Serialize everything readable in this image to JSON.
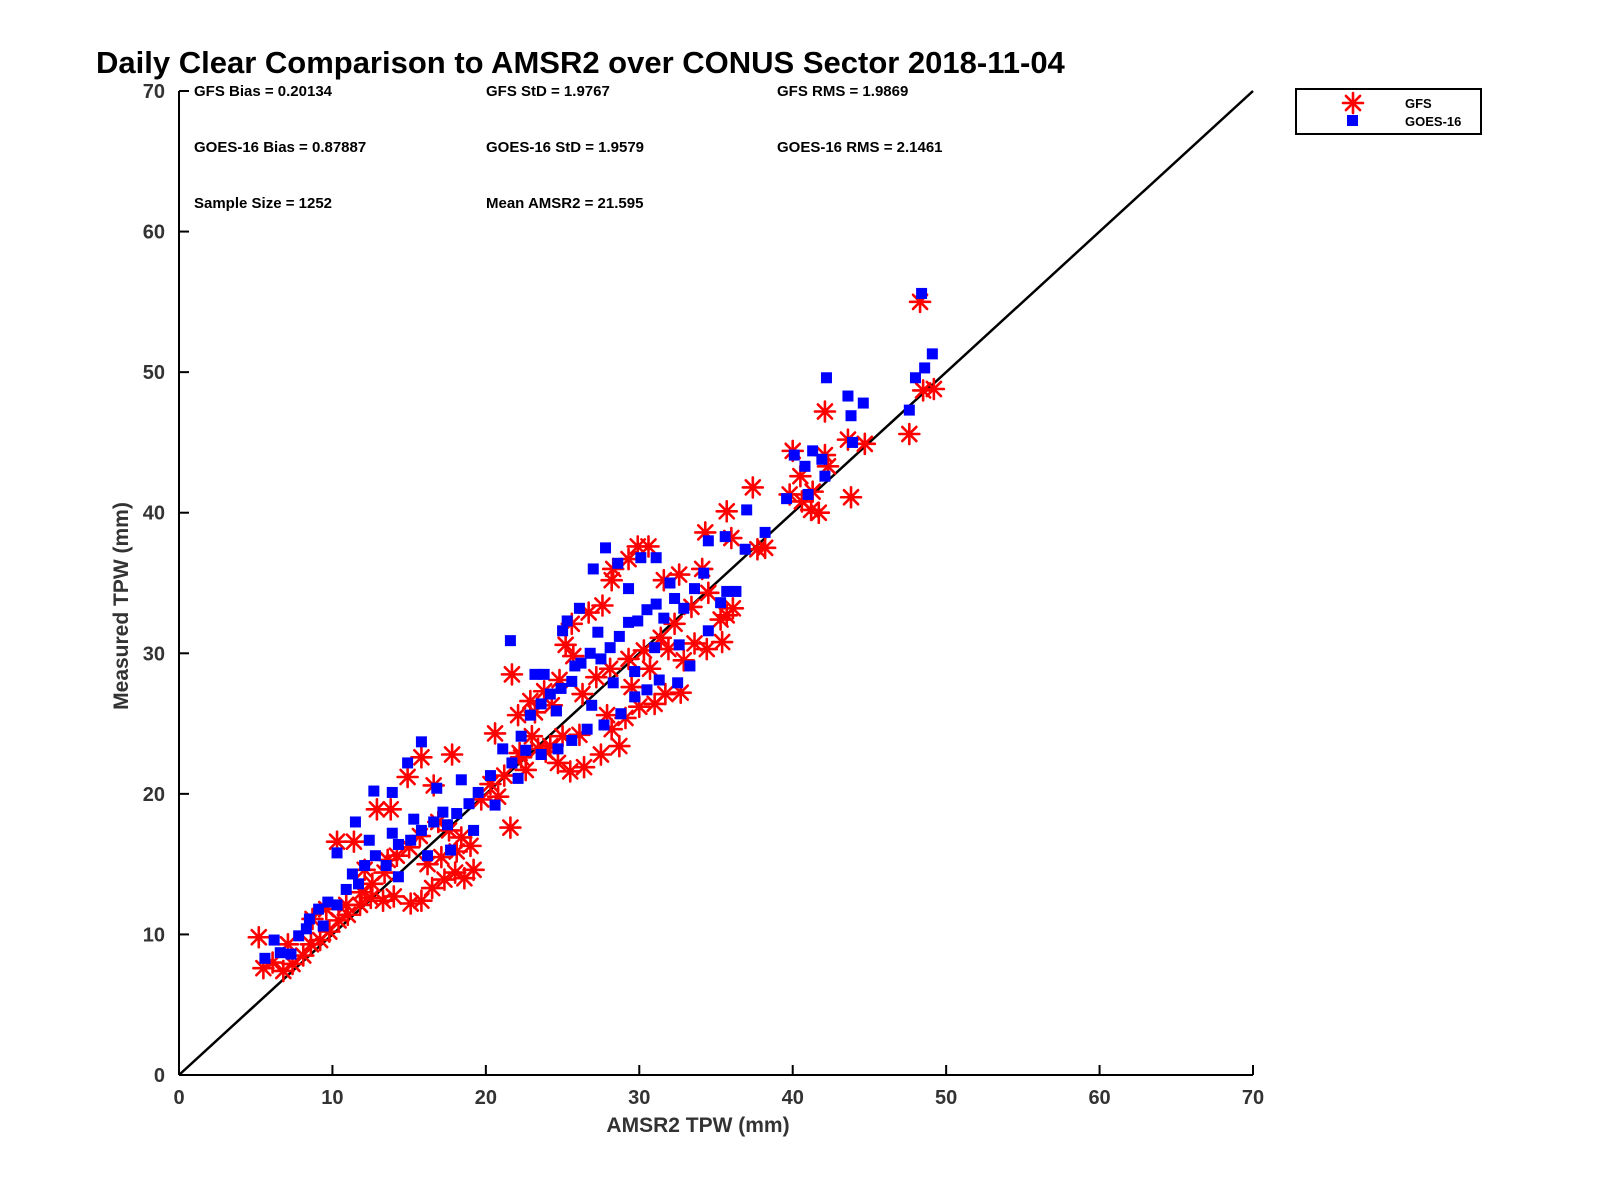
{
  "chart_data": {
    "type": "scatter",
    "title": "Daily Clear Comparison to AMSR2 over CONUS Sector 2018-11-04",
    "xlabel": "AMSR2 TPW (mm)",
    "ylabel": "Measured TPW (mm)",
    "xlim": [
      0,
      70
    ],
    "ylim": [
      0,
      70
    ],
    "xticks": [
      0,
      10,
      20,
      30,
      40,
      50,
      60,
      70
    ],
    "yticks": [
      0,
      10,
      20,
      30,
      40,
      50,
      60,
      70
    ],
    "grid": false,
    "legend_position": "outside-top-right",
    "reference_line": {
      "from": [
        0,
        0
      ],
      "to": [
        70,
        70
      ],
      "color": "#000000"
    },
    "stats": [
      {
        "text": "GFS Bias = 0.20134"
      },
      {
        "text": "GFS StD = 1.9767"
      },
      {
        "text": "GFS RMS = 1.9869"
      },
      {
        "text": "GOES-16 Bias = 0.87887"
      },
      {
        "text": "GOES-16 StD = 1.9579"
      },
      {
        "text": "GOES-16 RMS = 2.1461"
      },
      {
        "text": "Sample Size = 1252"
      },
      {
        "text": "Mean AMSR2 = 21.595"
      }
    ],
    "series": [
      {
        "name": "GFS",
        "marker": "asterisk",
        "color": "#ff0000",
        "points": [
          [
            5.2,
            9.8
          ],
          [
            5.5,
            7.6
          ],
          [
            6.1,
            8.0
          ],
          [
            6.8,
            7.4
          ],
          [
            7.4,
            7.9
          ],
          [
            8.1,
            8.5
          ],
          [
            8.6,
            9.3
          ],
          [
            9.2,
            9.6
          ],
          [
            9.8,
            10.2
          ],
          [
            10.4,
            11.0
          ],
          [
            11.0,
            11.4
          ],
          [
            11.8,
            12.1
          ],
          [
            12.5,
            12.6
          ],
          [
            13.3,
            12.4
          ],
          [
            14.0,
            12.7
          ],
          [
            15.1,
            12.2
          ],
          [
            15.8,
            12.4
          ],
          [
            16.5,
            13.3
          ],
          [
            17.3,
            13.9
          ],
          [
            18.0,
            14.4
          ],
          [
            18.6,
            14.0
          ],
          [
            19.2,
            14.6
          ],
          [
            19.0,
            16.3
          ],
          [
            18.4,
            16.9
          ],
          [
            17.6,
            17.4
          ],
          [
            16.9,
            18.0
          ],
          [
            15.7,
            17.0
          ],
          [
            15.0,
            16.2
          ],
          [
            14.2,
            15.6
          ],
          [
            13.4,
            14.4
          ],
          [
            12.6,
            13.6
          ],
          [
            11.9,
            13.0
          ],
          [
            10.9,
            12.1
          ],
          [
            10.3,
            16.6
          ],
          [
            11.4,
            16.6
          ],
          [
            12.9,
            18.9
          ],
          [
            13.8,
            18.9
          ],
          [
            14.9,
            21.2
          ],
          [
            15.8,
            22.6
          ],
          [
            17.8,
            22.8
          ],
          [
            16.6,
            20.6
          ],
          [
            20.6,
            24.3
          ],
          [
            21.7,
            28.5
          ],
          [
            20.3,
            20.7
          ],
          [
            21.6,
            17.6
          ],
          [
            21.2,
            21.3
          ],
          [
            22.3,
            22.6
          ],
          [
            23.4,
            23.2
          ],
          [
            24.2,
            23.4
          ],
          [
            25.0,
            24.1
          ],
          [
            25.5,
            21.6
          ],
          [
            26.4,
            21.9
          ],
          [
            27.5,
            22.8
          ],
          [
            28.7,
            23.4
          ],
          [
            28.2,
            24.6
          ],
          [
            29.1,
            25.4
          ],
          [
            30.0,
            26.2
          ],
          [
            31.0,
            26.4
          ],
          [
            31.7,
            27.1
          ],
          [
            32.7,
            27.2
          ],
          [
            32.9,
            29.5
          ],
          [
            33.6,
            30.7
          ],
          [
            34.4,
            30.3
          ],
          [
            35.4,
            30.8
          ],
          [
            35.7,
            32.7
          ],
          [
            36.1,
            33.2
          ],
          [
            35.3,
            32.4
          ],
          [
            34.5,
            34.3
          ],
          [
            34.1,
            36.0
          ],
          [
            34.3,
            38.6
          ],
          [
            35.7,
            40.1
          ],
          [
            36.0,
            38.2
          ],
          [
            37.4,
            41.8
          ],
          [
            38.2,
            37.5
          ],
          [
            37.7,
            37.4
          ],
          [
            32.6,
            35.6
          ],
          [
            31.6,
            35.2
          ],
          [
            30.6,
            37.6
          ],
          [
            29.9,
            37.6
          ],
          [
            29.3,
            36.7
          ],
          [
            28.3,
            36.0
          ],
          [
            28.2,
            35.2
          ],
          [
            27.6,
            33.4
          ],
          [
            26.7,
            32.9
          ],
          [
            25.6,
            32.1
          ],
          [
            25.2,
            30.6
          ],
          [
            25.7,
            29.8
          ],
          [
            24.8,
            28.1
          ],
          [
            23.8,
            27.3
          ],
          [
            22.9,
            26.6
          ],
          [
            22.1,
            25.6
          ],
          [
            23.2,
            25.8
          ],
          [
            24.3,
            26.3
          ],
          [
            26.3,
            27.1
          ],
          [
            27.2,
            28.3
          ],
          [
            28.1,
            28.9
          ],
          [
            29.3,
            29.6
          ],
          [
            30.3,
            30.2
          ],
          [
            31.4,
            31.1
          ],
          [
            32.3,
            32.1
          ],
          [
            33.4,
            33.3
          ],
          [
            26.1,
            24.2
          ],
          [
            27.9,
            25.6
          ],
          [
            29.5,
            27.6
          ],
          [
            30.7,
            28.9
          ],
          [
            31.9,
            30.3
          ],
          [
            24.7,
            22.2
          ],
          [
            23.9,
            23.0
          ],
          [
            23.0,
            24.1
          ],
          [
            22.2,
            22.9
          ],
          [
            39.8,
            41.3
          ],
          [
            40.6,
            40.8
          ],
          [
            41.2,
            40.2
          ],
          [
            41.7,
            40.0
          ],
          [
            41.3,
            41.5
          ],
          [
            40.5,
            42.6
          ],
          [
            40.0,
            44.4
          ],
          [
            42.1,
            44.1
          ],
          [
            42.1,
            47.2
          ],
          [
            42.3,
            43.3
          ],
          [
            43.6,
            45.2
          ],
          [
            44.7,
            44.9
          ],
          [
            43.8,
            41.1
          ],
          [
            47.6,
            45.6
          ],
          [
            48.5,
            48.7
          ],
          [
            49.2,
            48.8
          ],
          [
            48.3,
            55.0
          ],
          [
            8.7,
            11.1
          ],
          [
            9.6,
            11.8
          ],
          [
            7.1,
            9.3
          ],
          [
            12.1,
            14.6
          ],
          [
            13.6,
            15.3
          ],
          [
            16.2,
            15.0
          ],
          [
            17.1,
            15.5
          ],
          [
            18.1,
            15.9
          ],
          [
            19.7,
            19.6
          ],
          [
            20.8,
            19.8
          ],
          [
            22.6,
            21.7
          ]
        ]
      },
      {
        "name": "GOES-16",
        "marker": "square",
        "color": "#0000ff",
        "points": [
          [
            5.6,
            8.3
          ],
          [
            6.2,
            9.6
          ],
          [
            6.6,
            8.7
          ],
          [
            7.3,
            8.6
          ],
          [
            7.8,
            9.9
          ],
          [
            8.5,
            11.1
          ],
          [
            9.1,
            11.8
          ],
          [
            9.7,
            12.3
          ],
          [
            10.3,
            12.1
          ],
          [
            10.9,
            13.2
          ],
          [
            11.3,
            14.3
          ],
          [
            12.1,
            14.9
          ],
          [
            12.8,
            15.6
          ],
          [
            13.5,
            14.9
          ],
          [
            14.3,
            16.4
          ],
          [
            15.1,
            16.7
          ],
          [
            15.8,
            17.4
          ],
          [
            16.6,
            18.0
          ],
          [
            17.5,
            17.8
          ],
          [
            18.1,
            18.6
          ],
          [
            18.9,
            19.3
          ],
          [
            19.5,
            20.1
          ],
          [
            10.3,
            15.8
          ],
          [
            11.5,
            18.0
          ],
          [
            12.7,
            20.2
          ],
          [
            13.9,
            20.1
          ],
          [
            14.9,
            22.2
          ],
          [
            15.8,
            23.7
          ],
          [
            16.8,
            20.4
          ],
          [
            17.2,
            18.7
          ],
          [
            18.4,
            21.0
          ],
          [
            13.9,
            17.2
          ],
          [
            15.3,
            18.2
          ],
          [
            12.4,
            16.7
          ],
          [
            14.3,
            14.1
          ],
          [
            16.2,
            15.6
          ],
          [
            17.7,
            16.0
          ],
          [
            20.3,
            21.3
          ],
          [
            21.1,
            23.2
          ],
          [
            21.7,
            22.2
          ],
          [
            22.3,
            24.1
          ],
          [
            22.9,
            25.6
          ],
          [
            23.6,
            26.4
          ],
          [
            24.2,
            27.1
          ],
          [
            24.9,
            27.5
          ],
          [
            25.6,
            28.0
          ],
          [
            26.2,
            29.3
          ],
          [
            26.8,
            30.0
          ],
          [
            27.5,
            29.6
          ],
          [
            28.1,
            30.4
          ],
          [
            28.7,
            31.2
          ],
          [
            29.3,
            32.2
          ],
          [
            29.9,
            32.3
          ],
          [
            30.5,
            33.1
          ],
          [
            31.1,
            33.5
          ],
          [
            31.6,
            32.5
          ],
          [
            32.3,
            33.9
          ],
          [
            32.9,
            33.2
          ],
          [
            33.6,
            34.6
          ],
          [
            34.2,
            35.7
          ],
          [
            23.2,
            28.5
          ],
          [
            23.8,
            28.5
          ],
          [
            25.0,
            31.6
          ],
          [
            25.3,
            32.3
          ],
          [
            26.1,
            33.2
          ],
          [
            27.0,
            36.0
          ],
          [
            27.8,
            37.5
          ],
          [
            28.6,
            36.4
          ],
          [
            29.3,
            34.6
          ],
          [
            30.1,
            36.8
          ],
          [
            31.1,
            36.8
          ],
          [
            32.0,
            35.0
          ],
          [
            32.6,
            30.6
          ],
          [
            33.3,
            29.1
          ],
          [
            32.5,
            27.9
          ],
          [
            31.3,
            28.1
          ],
          [
            30.5,
            27.4
          ],
          [
            29.7,
            26.9
          ],
          [
            28.8,
            25.7
          ],
          [
            27.7,
            24.9
          ],
          [
            26.6,
            24.6
          ],
          [
            25.6,
            23.8
          ],
          [
            24.7,
            23.2
          ],
          [
            23.6,
            22.8
          ],
          [
            22.6,
            23.1
          ],
          [
            21.6,
            30.9
          ],
          [
            34.5,
            31.6
          ],
          [
            35.3,
            33.6
          ],
          [
            35.7,
            34.4
          ],
          [
            36.3,
            34.4
          ],
          [
            35.6,
            38.3
          ],
          [
            37.0,
            40.2
          ],
          [
            38.2,
            38.6
          ],
          [
            36.9,
            37.4
          ],
          [
            34.5,
            38.0
          ],
          [
            39.6,
            41.0
          ],
          [
            40.1,
            44.1
          ],
          [
            40.8,
            43.3
          ],
          [
            41.3,
            44.4
          ],
          [
            41.9,
            43.8
          ],
          [
            42.2,
            49.6
          ],
          [
            42.1,
            42.6
          ],
          [
            41.0,
            41.3
          ],
          [
            43.6,
            48.3
          ],
          [
            43.8,
            46.9
          ],
          [
            44.6,
            47.8
          ],
          [
            43.9,
            45.0
          ],
          [
            47.6,
            47.3
          ],
          [
            48.0,
            49.6
          ],
          [
            48.6,
            50.3
          ],
          [
            49.1,
            51.3
          ],
          [
            48.4,
            55.6
          ],
          [
            8.3,
            10.4
          ],
          [
            9.4,
            10.6
          ],
          [
            11.7,
            13.6
          ],
          [
            19.2,
            17.4
          ],
          [
            20.6,
            19.2
          ],
          [
            22.1,
            21.1
          ],
          [
            26.9,
            26.3
          ],
          [
            28.3,
            27.9
          ],
          [
            29.7,
            28.7
          ],
          [
            31.0,
            30.4
          ],
          [
            27.3,
            31.5
          ],
          [
            25.8,
            29.1
          ],
          [
            24.6,
            25.9
          ]
        ]
      }
    ]
  }
}
